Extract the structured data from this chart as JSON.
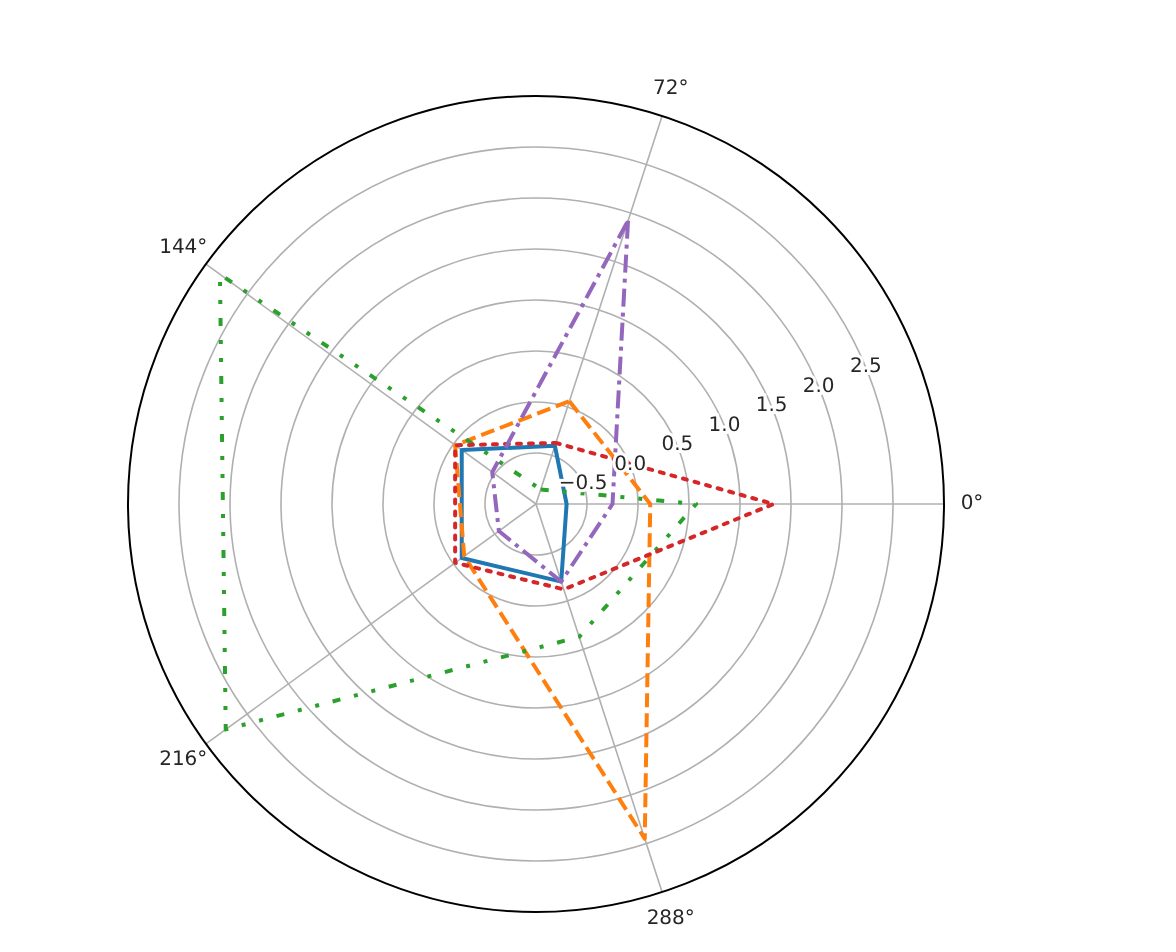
{
  "chart_data": {
    "type": "radar",
    "categories": [
      "72°",
      "0°",
      "288°",
      "216°",
      "144°"
    ],
    "series": [
      {
        "color": "#1f77b4",
        "line_style": "solid",
        "values": [
          -0.4,
          -0.7,
          -0.2,
          -0.1,
          -0.1
        ]
      },
      {
        "color": "#ff7f0e",
        "line_style": "dashed",
        "values": [
          0.06,
          0.12,
          2.45,
          -0.13,
          -0.02
        ]
      },
      {
        "color": "#2ca02c",
        "line_style": "dashdotdot",
        "values": [
          -0.85,
          0.57,
          0.37,
          2.76,
          2.83
        ]
      },
      {
        "color": "#d62728",
        "line_style": "dotted",
        "values": [
          -0.37,
          1.33,
          -0.12,
          -0.02,
          -0.02
        ]
      },
      {
        "color": "#9467bd",
        "line_style": "dashdot",
        "values": [
          1.92,
          -0.25,
          -0.2,
          -0.55,
          -0.47
        ]
      }
    ],
    "ylim": [
      -1,
      3
    ],
    "yticks": [
      {
        "value": -0.5,
        "label": "−0.5"
      },
      {
        "value": 0,
        "label": "0.0"
      },
      {
        "value": 0.5,
        "label": "0.5"
      },
      {
        "value": 1,
        "label": "1.0"
      },
      {
        "value": 1.5,
        "label": "1.5"
      },
      {
        "value": 2,
        "label": "2.0"
      },
      {
        "value": 2.5,
        "label": "2.5"
      }
    ],
    "grid": true
  }
}
